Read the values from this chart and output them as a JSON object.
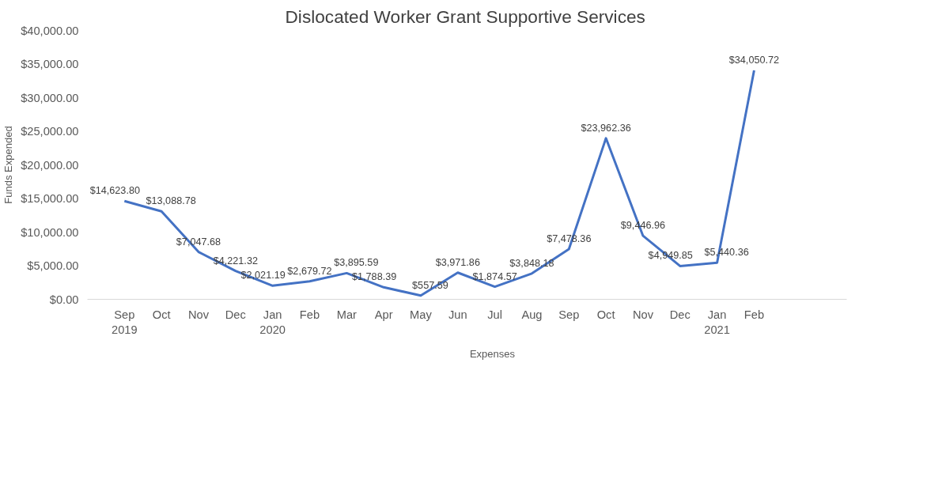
{
  "chart_data": {
    "type": "line",
    "title": "Dislocated Worker Grant Supportive Services",
    "ylabel": "Funds Expended",
    "categories": [
      "Sep\n2019",
      "Oct",
      "Nov",
      "Dec",
      "Jan\n2020",
      "Feb",
      "Mar",
      "Apr",
      "May",
      "Jun",
      "Jul",
      "Aug",
      "Sep",
      "Oct",
      "Nov",
      "Dec",
      "Jan\n2021",
      "Feb",
      null,
      null
    ],
    "series": [
      {
        "name": "Expenses",
        "color": "#4472c4",
        "values": [
          14623.8,
          13088.78,
          7047.68,
          4221.32,
          2021.19,
          2679.72,
          3895.59,
          1788.39,
          557.59,
          3971.86,
          1874.57,
          3848.18,
          7478.36,
          23962.36,
          9446.96,
          4949.85,
          5440.36,
          34050.72,
          null,
          null
        ],
        "value_labels": [
          "$14,623.80",
          "$13,088.78",
          "$7,047.68",
          "$4,221.32",
          "$2,021.19",
          "$2,679.72",
          "$3,895.59",
          "$1,788.39",
          "$557.59",
          "$3,971.86",
          "$1,874.57",
          "$3,848.18",
          "$7,478.36",
          "$23,962.36",
          "$9,446.96",
          "$4,949.85",
          "$5,440.36",
          "$34,050.72",
          null,
          null
        ]
      }
    ],
    "ylim": [
      0,
      40000
    ],
    "yticks": [
      {
        "value": 0,
        "label": "$0.00"
      },
      {
        "value": 5000,
        "label": "$5,000.00"
      },
      {
        "value": 10000,
        "label": "$10,000.00"
      },
      {
        "value": 15000,
        "label": "$15,000.00"
      },
      {
        "value": 20000,
        "label": "$20,000.00"
      },
      {
        "value": 25000,
        "label": "$25,000.00"
      },
      {
        "value": 30000,
        "label": "$30,000.00"
      },
      {
        "value": 35000,
        "label": "$35,000.00"
      },
      {
        "value": 40000,
        "label": "$40,000.00"
      }
    ],
    "grid": false,
    "legend": "bottom",
    "marker": "none",
    "line_style": "solid"
  }
}
